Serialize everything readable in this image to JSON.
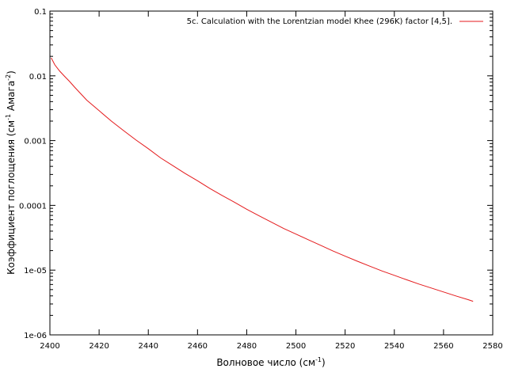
{
  "chart_data": {
    "type": "line",
    "xlabel": {
      "main": "Волновое число (см",
      "sup": "-1",
      "tail": ")"
    },
    "ylabel": {
      "main": "Коэффициент поглощения (см",
      "sup1": "-1",
      "mid": " Амага",
      "sup2": "-2",
      "tail": ")"
    },
    "xlim": [
      2400,
      2580
    ],
    "ylim": [
      1e-06,
      0.1
    ],
    "yscale": "log",
    "grid": false,
    "legend_position": "top-right",
    "xticks": [
      2400,
      2420,
      2440,
      2460,
      2480,
      2500,
      2520,
      2540,
      2560,
      2580
    ],
    "xtick_labels": [
      "2400",
      "2420",
      "2440",
      "2460",
      "2480",
      "2500",
      "2520",
      "2540",
      "2560",
      "2580"
    ],
    "yticks": [
      1e-06,
      1e-05,
      0.0001,
      0.001,
      0.01,
      0.1
    ],
    "ytick_labels": [
      "1e-06",
      "1e-05",
      "0.0001",
      "0.001",
      "0.01",
      "0.1"
    ],
    "series": [
      {
        "name": "5c. Calculation with the Lorentzian model Khee (296K) factor [4,5].",
        "color": "#e41a1c",
        "x": [
          2400.5,
          2402,
          2404,
          2406,
          2408,
          2410,
          2415,
          2420,
          2425,
          2430,
          2435,
          2440,
          2445,
          2450,
          2455,
          2460,
          2465,
          2470,
          2475,
          2480,
          2485,
          2490,
          2495,
          2500,
          2505,
          2510,
          2515,
          2520,
          2525,
          2530,
          2535,
          2540,
          2545,
          2550,
          2555,
          2560,
          2565,
          2570,
          2572
        ],
        "y": [
          0.019,
          0.0148,
          0.0118,
          0.0098,
          0.0082,
          0.0067,
          0.0042,
          0.0029,
          0.002,
          0.00142,
          0.00102,
          0.00075,
          0.00054,
          0.00041,
          0.00031,
          0.00024,
          0.000182,
          0.000142,
          0.000112,
          8.7e-05,
          6.9e-05,
          5.5e-05,
          4.4e-05,
          3.6e-05,
          2.95e-05,
          2.42e-05,
          1.98e-05,
          1.64e-05,
          1.37e-05,
          1.15e-05,
          9.7e-06,
          8.3e-06,
          7.1e-06,
          6.1e-06,
          5.3e-06,
          4.6e-06,
          4e-06,
          3.5e-06,
          3.3e-06
        ]
      }
    ]
  }
}
